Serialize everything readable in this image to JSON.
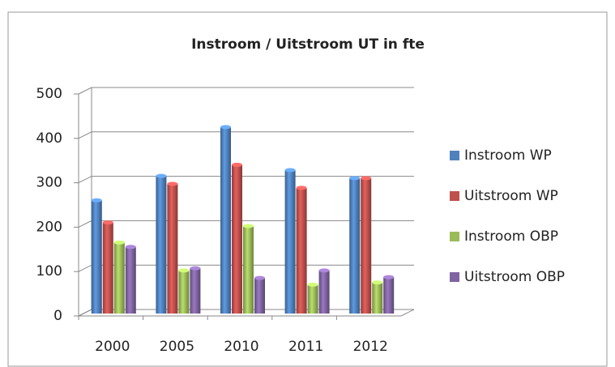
{
  "chart_data": {
    "type": "bar",
    "title": "Instroom / Uitstroom UT in fte",
    "categories": [
      "2000",
      "2005",
      "2010",
      "2011",
      "2012"
    ],
    "series": [
      {
        "name": "Instroom WP",
        "color": "#4f81bd",
        "values": [
          255,
          310,
          420,
          323,
          305
        ]
      },
      {
        "name": "Uitstroom WP",
        "color": "#c0504d",
        "values": [
          205,
          292,
          335,
          283,
          305
        ]
      },
      {
        "name": "Instroom OBP",
        "color": "#9bbb59",
        "values": [
          160,
          97,
          197,
          65,
          70
        ]
      },
      {
        "name": "Uitstroom OBP",
        "color": "#8064a2",
        "values": [
          150,
          102,
          80,
          97,
          82
        ]
      }
    ],
    "ylim": [
      0,
      500
    ],
    "yticks": [
      0,
      100,
      200,
      300,
      400,
      500
    ],
    "grid": true,
    "legend": "right"
  }
}
